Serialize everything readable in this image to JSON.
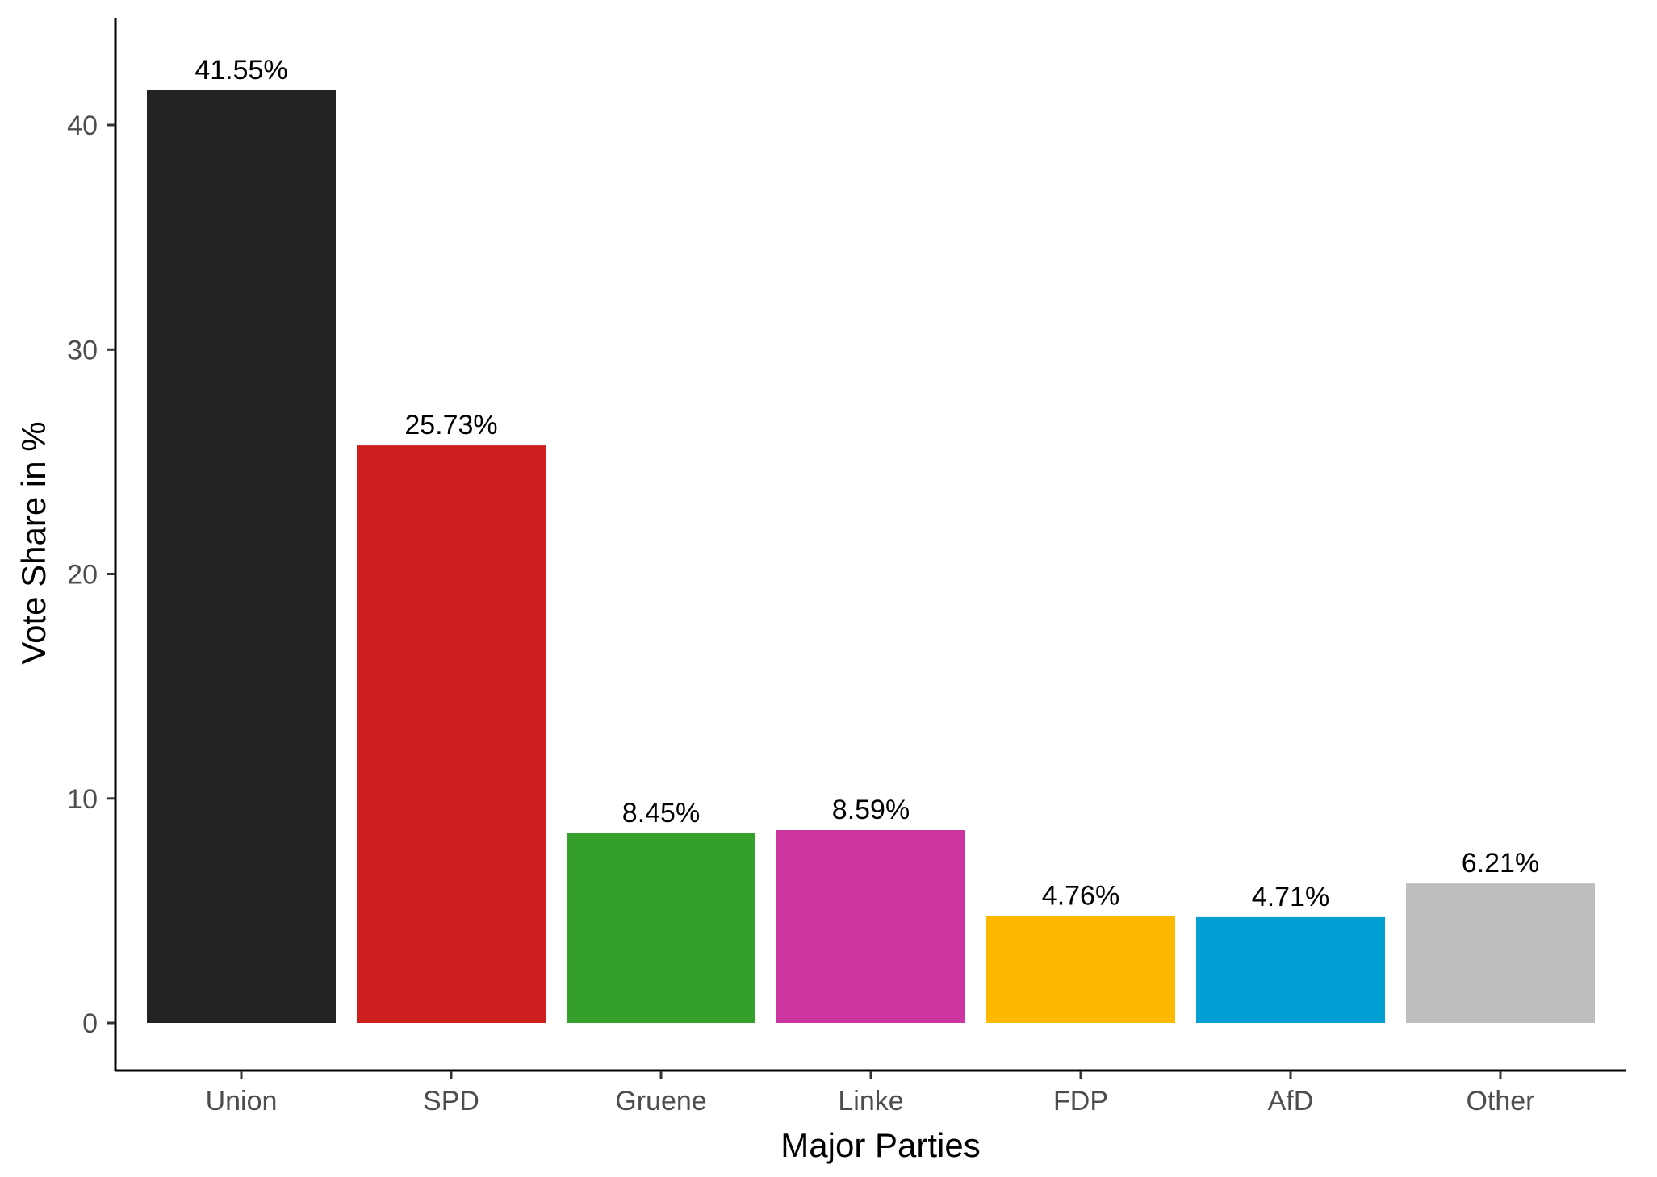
{
  "chart_data": {
    "type": "bar",
    "title": "",
    "xlabel": "Major Parties",
    "ylabel": "Vote Share in %",
    "categories": [
      "Union",
      "SPD",
      "Gruene",
      "Linke",
      "FDP",
      "AfD",
      "Other"
    ],
    "values": [
      41.55,
      25.73,
      8.45,
      8.59,
      4.76,
      4.71,
      6.21
    ],
    "data_labels": [
      "41.55%",
      "25.73%",
      "8.45%",
      "8.59%",
      "4.76%",
      "4.71%",
      "6.21%"
    ],
    "colors": [
      "#232323",
      "#cf1e1e",
      "#359f2c",
      "#cc35a0",
      "#ffb800",
      "#009fd3",
      "#bebebe"
    ],
    "y_ticks": [
      0,
      10,
      20,
      30,
      40
    ],
    "ylim": [
      0,
      44.7
    ],
    "grid": false,
    "legend": "none"
  }
}
